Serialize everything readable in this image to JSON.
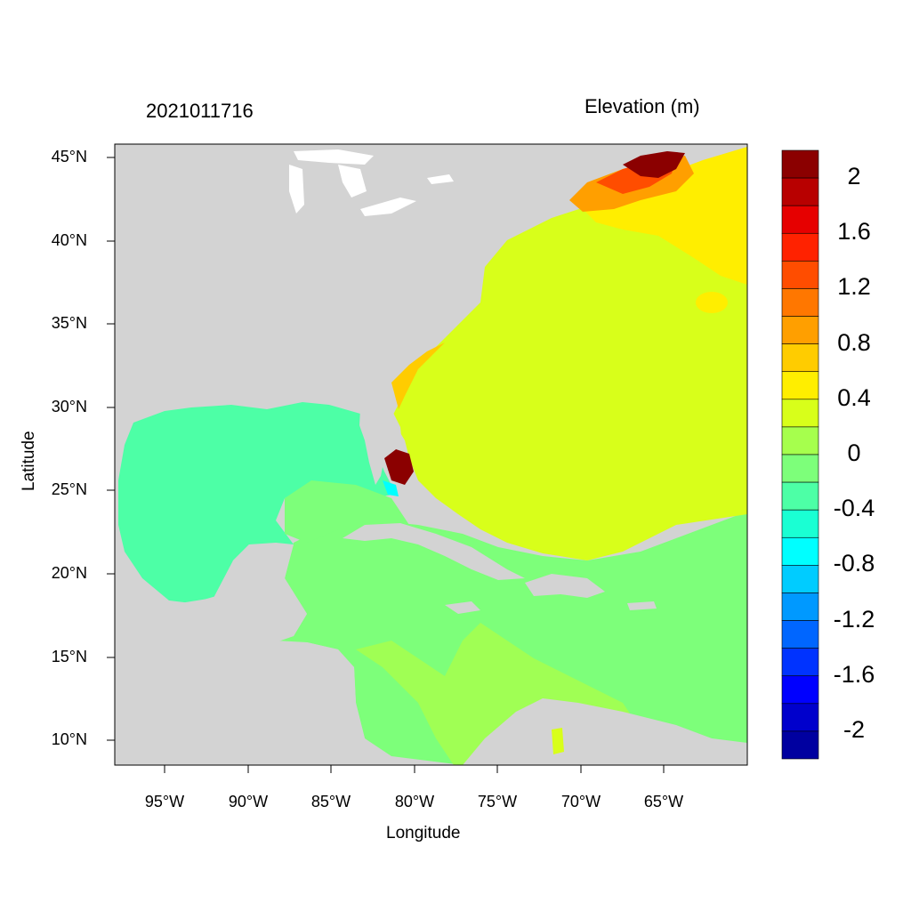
{
  "map": {
    "left_title": "2021011716",
    "right_title": "Elevation (m)",
    "x_label": "Longitude",
    "y_label": "Latitude",
    "lat_ticks": [
      "45°N",
      "40°N",
      "35°N",
      "30°N",
      "25°N",
      "20°N",
      "15°N",
      "10°N"
    ],
    "lon_ticks": [
      "95°W",
      "90°W",
      "85°W",
      "80°W",
      "75°W",
      "70°W",
      "65°W"
    ],
    "lat_range": [
      8.5,
      46
    ],
    "lon_range": [
      -98,
      -60
    ],
    "land_color": "#d3d3d3"
  },
  "colorbar": {
    "labels": [
      "2",
      "1.6",
      "1.2",
      "0.8",
      "0.4",
      "0",
      "-0.4",
      "-0.8",
      "-1.2",
      "-1.6",
      "-2"
    ],
    "colors": [
      "#8b0000",
      "#b80000",
      "#e60000",
      "#ff2200",
      "#ff4d00",
      "#ff7700",
      "#ff9f00",
      "#ffcc00",
      "#ffee00",
      "#d8ff1a",
      "#a6ff4d",
      "#7dff7a",
      "#4dffa6",
      "#1affd3",
      "#00ffff",
      "#00ccff",
      "#0099ff",
      "#0066ff",
      "#0033ff",
      "#0000ff",
      "#0000cc",
      "#0000a0"
    ]
  }
}
